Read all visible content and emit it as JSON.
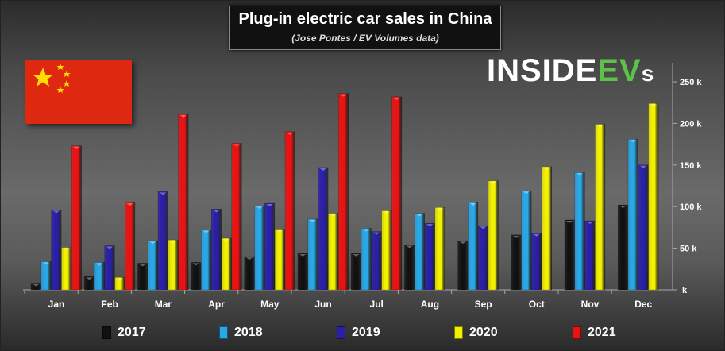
{
  "chart_data": {
    "type": "bar",
    "title": "Plug-in electric car sales in China",
    "subtitle": "(Jose Pontes / EV Volumes data)",
    "logo": "INSIDEEVs",
    "flag": "china-flag",
    "categories": [
      "Jan",
      "Feb",
      "Mar",
      "Apr",
      "May",
      "Jun",
      "Jul",
      "Aug",
      "Sep",
      "Oct",
      "Nov",
      "Dec"
    ],
    "ylim": [
      0,
      250000
    ],
    "yticks": [
      0,
      50000,
      100000,
      150000,
      200000,
      250000
    ],
    "ytick_labels": [
      "k",
      "50 k",
      "100 k",
      "150 k",
      "200 k",
      "250 k"
    ],
    "y_axis_position": "right",
    "legend_placement": "bottom",
    "grid": false,
    "series": [
      {
        "name": "2017",
        "color": "#111111",
        "values": [
          8000,
          16000,
          32000,
          33000,
          40000,
          44000,
          44000,
          54000,
          59000,
          66000,
          84000,
          102000
        ]
      },
      {
        "name": "2018",
        "color": "#29a8e8",
        "values": [
          34000,
          33000,
          59000,
          72000,
          101000,
          85000,
          74000,
          92000,
          105000,
          119000,
          141000,
          181000
        ]
      },
      {
        "name": "2019",
        "color": "#2a1fa8",
        "values": [
          96000,
          53000,
          118000,
          97000,
          104000,
          147000,
          70000,
          80000,
          77000,
          68000,
          83000,
          150000
        ]
      },
      {
        "name": "2020",
        "color": "#f2f200",
        "values": [
          51000,
          15000,
          60000,
          62000,
          73000,
          92000,
          95000,
          99000,
          131000,
          148000,
          199000,
          224000
        ]
      },
      {
        "name": "2021",
        "color": "#ee1111",
        "values": [
          173000,
          105000,
          211000,
          176000,
          190000,
          236000,
          232000,
          null,
          null,
          null,
          null,
          null
        ]
      }
    ]
  }
}
